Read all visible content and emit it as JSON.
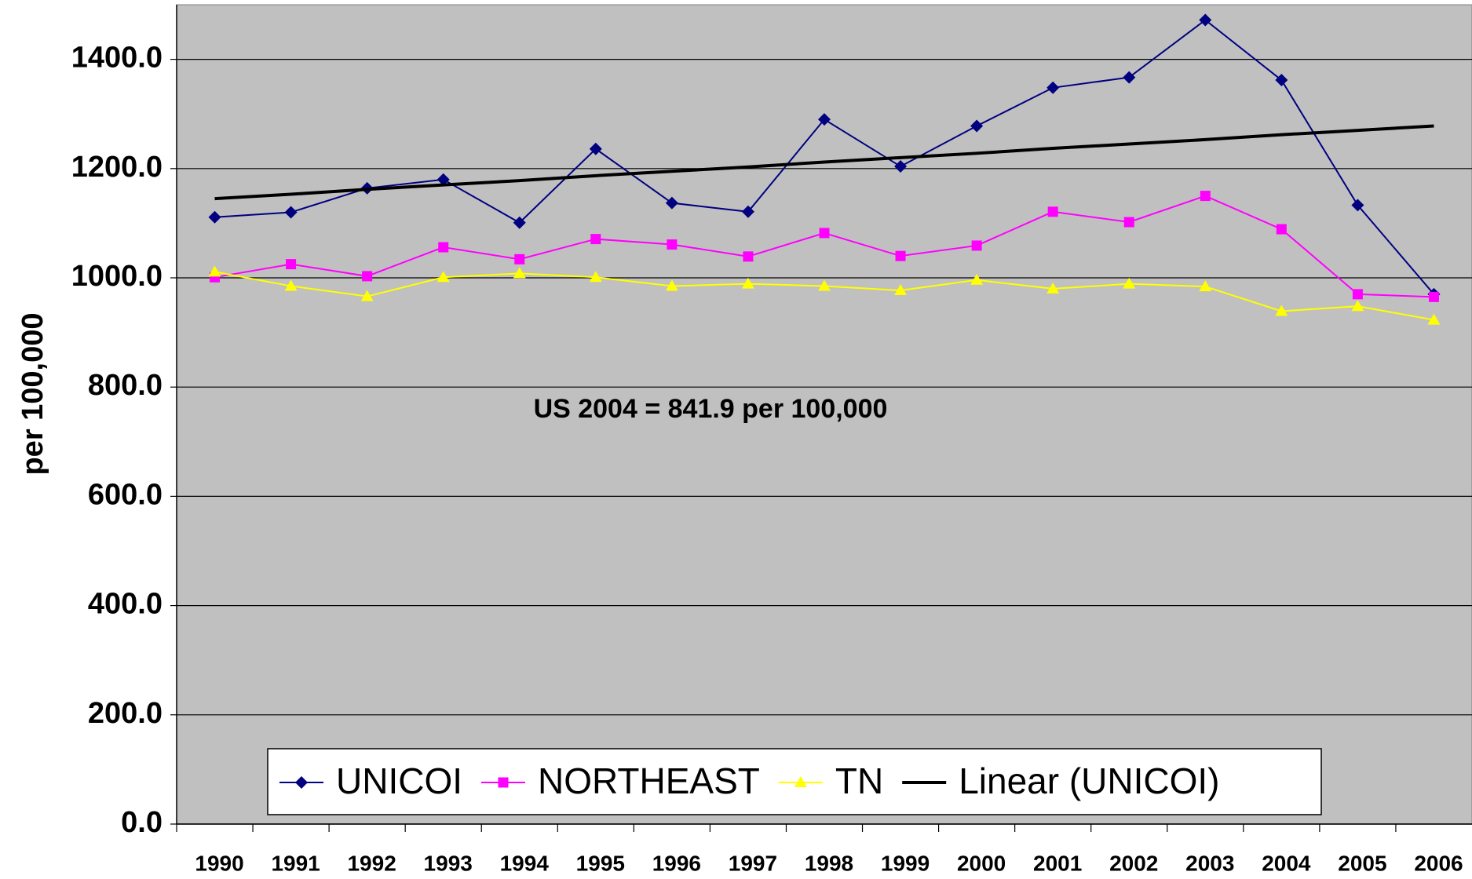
{
  "chart_data": {
    "type": "line",
    "y_label": "per 100,000",
    "annotation": "US 2004 = 841.9 per 100,000",
    "categories": [
      "1990",
      "1991",
      "1992",
      "1993",
      "1994",
      "1995",
      "1996",
      "1997",
      "1998",
      "1999",
      "2000",
      "2001",
      "2002",
      "2003",
      "2004",
      "2005",
      "2006"
    ],
    "series": [
      {
        "name": "UNICOI",
        "color": "#000080",
        "marker": "diamond",
        "values": [
          1111,
          1120,
          1164,
          1180,
          1101,
          1236,
          1137,
          1121,
          1290,
          1204,
          1278,
          1348,
          1367,
          1472,
          1362,
          1133,
          970
        ]
      },
      {
        "name": "NORTHEAST",
        "color": "#ff00ff",
        "marker": "square",
        "values": [
          1001,
          1025,
          1003,
          1056,
          1034,
          1071,
          1061,
          1039,
          1082,
          1040,
          1059,
          1121,
          1102,
          1150,
          1089,
          970,
          965
        ]
      },
      {
        "name": "TN",
        "color": "#ffff00",
        "marker": "triangle",
        "values": [
          1011,
          985,
          966,
          1001,
          1008,
          1001,
          985,
          989,
          985,
          977,
          996,
          980,
          989,
          984,
          939,
          948,
          923
        ]
      },
      {
        "name": "Linear (UNICOI)",
        "color": "#000000",
        "marker": null,
        "values": [
          1145,
          1153,
          1162,
          1170,
          1178,
          1187,
          1195,
          1203,
          1212,
          1220,
          1228,
          1237,
          1245,
          1253,
          1262,
          1270,
          1278
        ]
      }
    ],
    "ylim": [
      0,
      1500
    ],
    "yticks": [
      {
        "value": 0,
        "label": "0.0"
      },
      {
        "value": 200,
        "label": "200.0"
      },
      {
        "value": 400,
        "label": "400.0"
      },
      {
        "value": 600,
        "label": "600.0"
      },
      {
        "value": 800,
        "label": "800.0"
      },
      {
        "value": 1000,
        "label": "1000.0"
      },
      {
        "value": 1200,
        "label": "1200.0"
      },
      {
        "value": 1400,
        "label": "1400.0"
      }
    ],
    "grid": true,
    "legend": "bottom",
    "plot_background": "#c0c0c0"
  }
}
